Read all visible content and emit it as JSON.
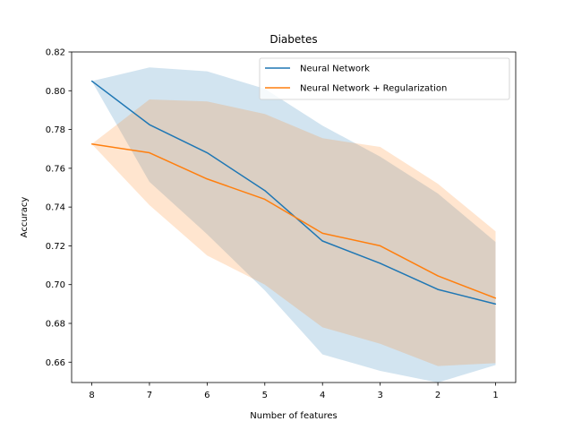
{
  "chart_data": {
    "type": "line",
    "title": "Diabetes",
    "xlabel": "Number of features",
    "ylabel": "Accuracy",
    "categories": [
      "8",
      "7",
      "6",
      "5",
      "4",
      "3",
      "2",
      "1"
    ],
    "ylim": [
      0.6495,
      0.82
    ],
    "yticks": [
      0.66,
      0.68,
      0.7,
      0.72,
      0.74,
      0.76,
      0.78,
      0.8,
      0.82
    ],
    "ytick_labels": [
      "0.66",
      "0.68",
      "0.70",
      "0.72",
      "0.74",
      "0.76",
      "0.78",
      "0.80",
      "0.82"
    ],
    "grid": false,
    "legend_position": "top-right",
    "series": [
      {
        "name": "Neural Network",
        "color": "#1f77b4",
        "values": [
          0.805,
          0.7825,
          0.768,
          0.7485,
          0.7225,
          0.711,
          0.6975,
          0.69
        ],
        "upper": [
          0.805,
          0.812,
          0.81,
          0.801,
          0.782,
          0.766,
          0.747,
          0.722
        ],
        "lower": [
          0.805,
          0.753,
          0.726,
          0.697,
          0.664,
          0.6555,
          0.6495,
          0.6585
        ]
      },
      {
        "name": "Neural Network + Regularization",
        "color": "#ff7f0e",
        "values": [
          0.7725,
          0.768,
          0.7545,
          0.744,
          0.7265,
          0.72,
          0.7045,
          0.693
        ],
        "upper": [
          0.7725,
          0.7955,
          0.7945,
          0.788,
          0.7755,
          0.771,
          0.752,
          0.7275
        ],
        "lower": [
          0.7725,
          0.741,
          0.715,
          0.7,
          0.678,
          0.6695,
          0.658,
          0.6595
        ]
      }
    ]
  }
}
